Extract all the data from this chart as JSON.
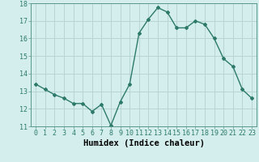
{
  "x": [
    0,
    1,
    2,
    3,
    4,
    5,
    6,
    7,
    8,
    9,
    10,
    11,
    12,
    13,
    14,
    15,
    16,
    17,
    18,
    19,
    20,
    21,
    22,
    23
  ],
  "y": [
    13.4,
    13.1,
    12.8,
    12.6,
    12.3,
    12.3,
    11.85,
    12.25,
    11.05,
    12.4,
    13.4,
    16.3,
    17.1,
    17.75,
    17.5,
    16.6,
    16.6,
    17.0,
    16.8,
    16.0,
    14.85,
    14.4,
    13.1,
    12.6
  ],
  "xlabel": "Humidex (Indice chaleur)",
  "ylim": [
    11,
    18
  ],
  "xlim": [
    -0.5,
    23.5
  ],
  "yticks": [
    11,
    12,
    13,
    14,
    15,
    16,
    17,
    18
  ],
  "xticks": [
    0,
    1,
    2,
    3,
    4,
    5,
    6,
    7,
    8,
    9,
    10,
    11,
    12,
    13,
    14,
    15,
    16,
    17,
    18,
    19,
    20,
    21,
    22,
    23
  ],
  "line_color": "#2d7a6b",
  "marker": "D",
  "marker_size": 2.0,
  "bg_color": "#d4eeee",
  "grid_color": "#b8d4d4",
  "xlabel_fontsize": 7.5,
  "tick_fontsize": 6.0,
  "line_width": 1.0
}
